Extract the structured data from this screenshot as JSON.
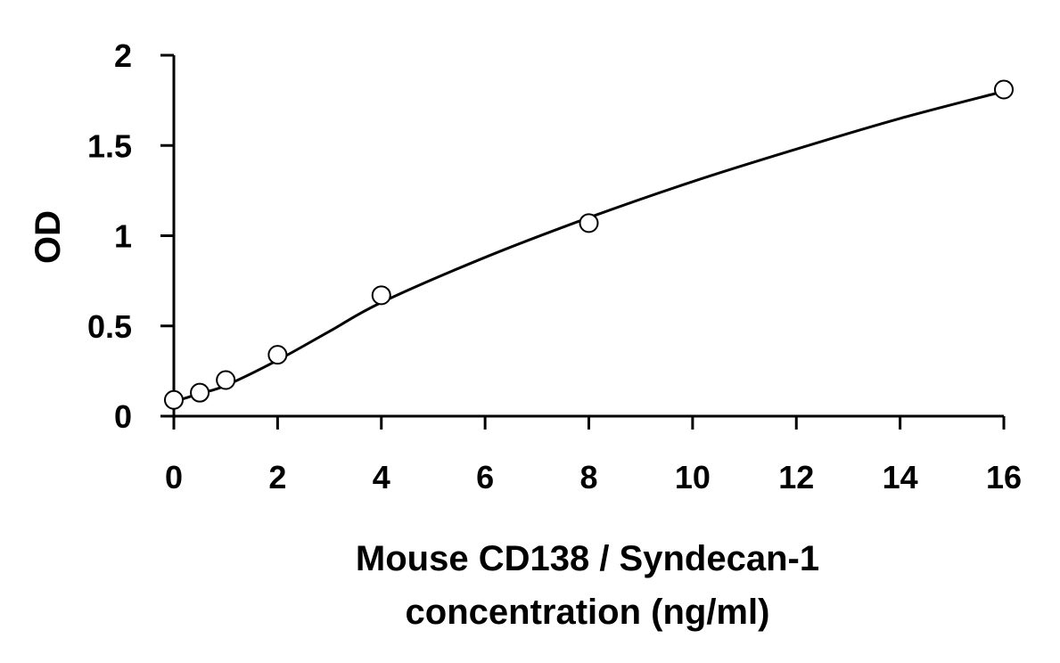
{
  "chart_data": {
    "type": "scatter",
    "xlabel_lines": [
      "Mouse CD138 / Syndecan-1",
      "concentration (ng/ml)"
    ],
    "ylabel": "OD",
    "xlim": [
      0,
      16
    ],
    "ylim": [
      0,
      2
    ],
    "x_ticks": [
      0,
      2,
      4,
      6,
      8,
      10,
      12,
      14,
      16
    ],
    "y_ticks": [
      0,
      0.5,
      1,
      1.5,
      2
    ],
    "grid": false,
    "legend": "none",
    "series": [
      {
        "marker": "open-circle",
        "x": [
          0,
          0.5,
          1,
          2,
          4,
          8,
          16
        ],
        "y": [
          0.09,
          0.13,
          0.2,
          0.34,
          0.67,
          1.07,
          1.81
        ]
      }
    ],
    "fit_curve": {
      "style": "smooth-line",
      "x": [
        0,
        0.5,
        1,
        2,
        3,
        4,
        6,
        8,
        10,
        12,
        14,
        16
      ],
      "y": [
        0.08,
        0.125,
        0.17,
        0.31,
        0.47,
        0.63,
        0.88,
        1.1,
        1.3,
        1.48,
        1.65,
        1.8
      ]
    },
    "colors": {
      "axis": "#000000",
      "curve": "#000000",
      "marker_fill": "#ffffff",
      "text": "#000000"
    }
  }
}
